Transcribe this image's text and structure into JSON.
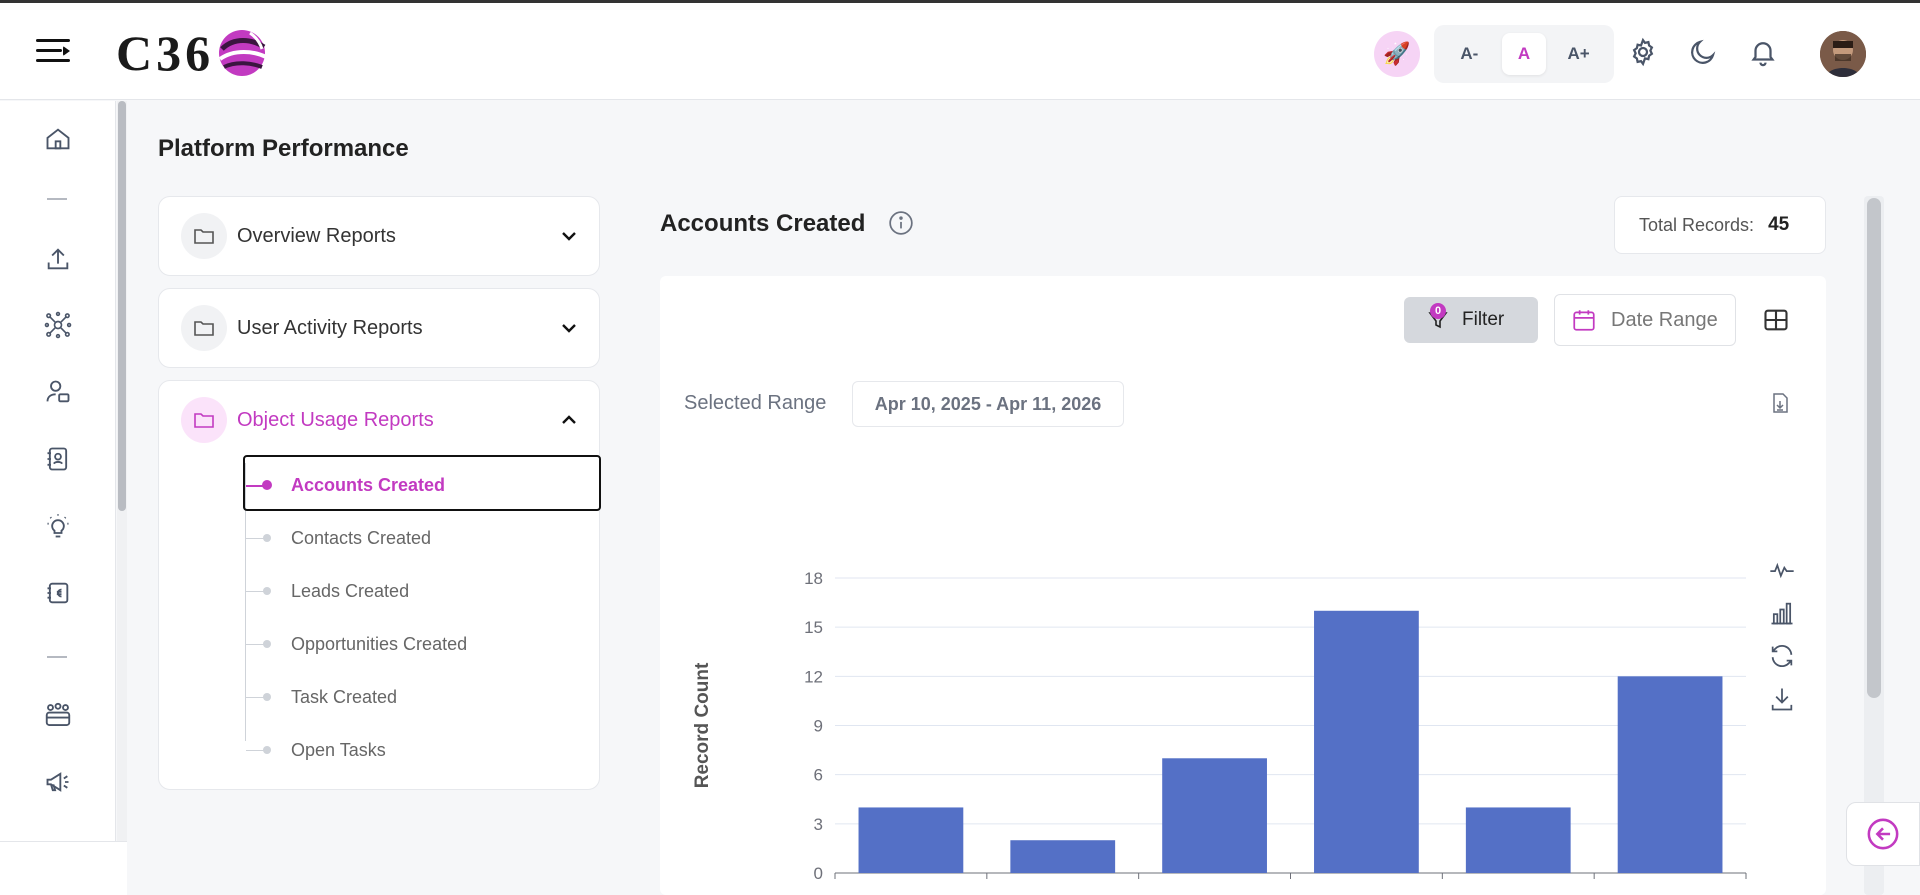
{
  "header": {
    "logo_text": "C36",
    "font_small": "A-",
    "font_normal": "A",
    "font_large": "A+"
  },
  "page": {
    "title": "Platform Performance"
  },
  "reports": [
    {
      "label": "Overview Reports",
      "expanded": false
    },
    {
      "label": "User Activity Reports",
      "expanded": false
    },
    {
      "label": "Object Usage Reports",
      "expanded": true,
      "items": [
        "Accounts Created",
        "Contacts Created",
        "Leads Created",
        "Opportunities Created",
        "Task Created",
        "Open Tasks"
      ],
      "active_item": "Accounts Created"
    }
  ],
  "report": {
    "title": "Accounts Created",
    "total_label": "Total Records:",
    "total_value": "45",
    "filter_label": "Filter",
    "filter_count": "0",
    "date_range_label": "Date Range",
    "selected_range_label": "Selected Range",
    "selected_range_value": "Apr 10, 2025 - Apr 11, 2026"
  },
  "colors": {
    "accent": "#c23ac1",
    "bar": "#5470c6"
  },
  "chart_data": {
    "type": "bar",
    "ylabel": "Record Count",
    "ylim": [
      0,
      18
    ],
    "yticks": [
      0,
      3,
      6,
      9,
      12,
      15,
      18
    ],
    "values": [
      4,
      2,
      7,
      16,
      4,
      12
    ]
  }
}
